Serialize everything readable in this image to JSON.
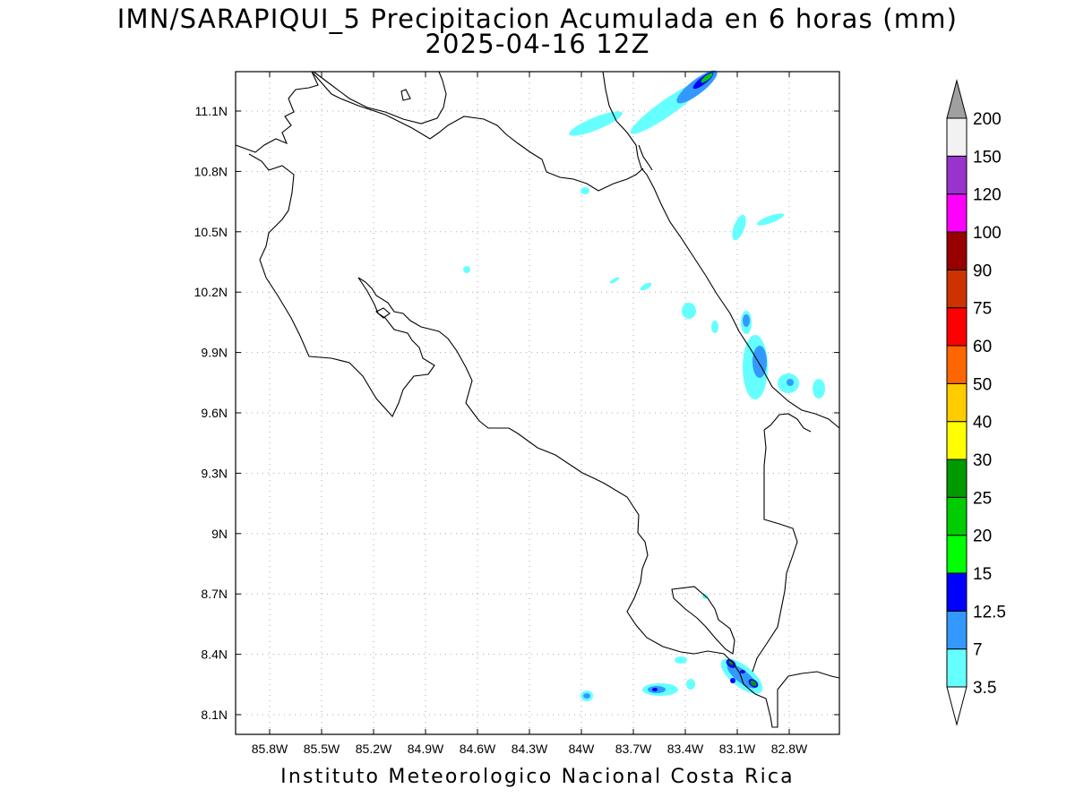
{
  "title": {
    "line1": "IMN/SARAPIQUI_5 Precipitacion Acumulada en 6 horas (mm)",
    "line2": "2025-04-16 12Z"
  },
  "footer": "Instituto Meteorologico Nacional Costa Rica",
  "map": {
    "x_ticks": [
      "85.8W",
      "85.5W",
      "85.2W",
      "84.9W",
      "84.6W",
      "84.3W",
      "84W",
      "83.7W",
      "83.4W",
      "83.1W",
      "82.8W"
    ],
    "y_ticks": [
      "11.1N",
      "10.8N",
      "10.5N",
      "10.2N",
      "9.9N",
      "9.6N",
      "9.3N",
      "9N",
      "8.7N",
      "8.4N",
      "8.1N"
    ],
    "grid": "dotted"
  },
  "colorbar": {
    "labels": [
      "3.5",
      "7",
      "12.5",
      "15",
      "20",
      "25",
      "30",
      "40",
      "50",
      "60",
      "75",
      "90",
      "100",
      "120",
      "150",
      "200"
    ],
    "colors": [
      "#66ffff",
      "#3399ff",
      "#0000ff",
      "#00ff00",
      "#00cc00",
      "#009900",
      "#ffff00",
      "#ffcc00",
      "#ff6600",
      "#ff0000",
      "#cc3300",
      "#990000",
      "#ff00ff",
      "#9933cc",
      "#f2f2f2"
    ],
    "over_color": "#a0a0a0",
    "under_color": "#ffffff"
  }
}
